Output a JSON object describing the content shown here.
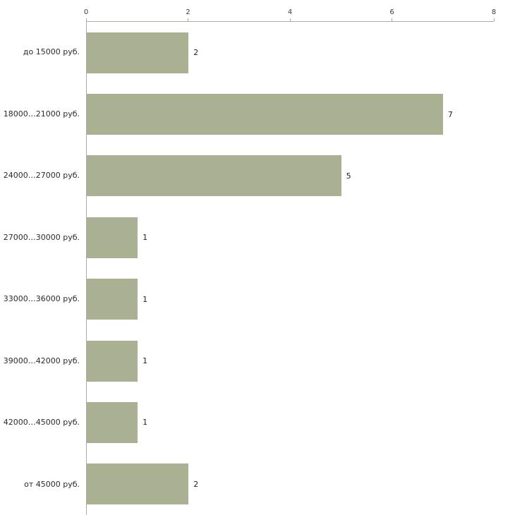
{
  "chart_data": {
    "type": "bar",
    "orientation": "horizontal",
    "title": "",
    "xlabel": "",
    "ylabel": "",
    "categories": [
      "до 15000 руб.",
      "18000…21000 руб.",
      "24000…27000 руб.",
      "27000…30000 руб.",
      "33000…36000 руб.",
      "39000…42000 руб.",
      "42000…45000 руб.",
      "от 45000 руб."
    ],
    "values": [
      2,
      7,
      5,
      1,
      1,
      1,
      1,
      2
    ],
    "x_ticks": [
      0,
      2,
      4,
      6,
      8
    ],
    "xlim": [
      0,
      8
    ],
    "grid": false,
    "legend": false,
    "axis_position": "top",
    "bar_color": "#a9b192",
    "axis_line_color": "#ababab",
    "value_labels_shown": true
  }
}
